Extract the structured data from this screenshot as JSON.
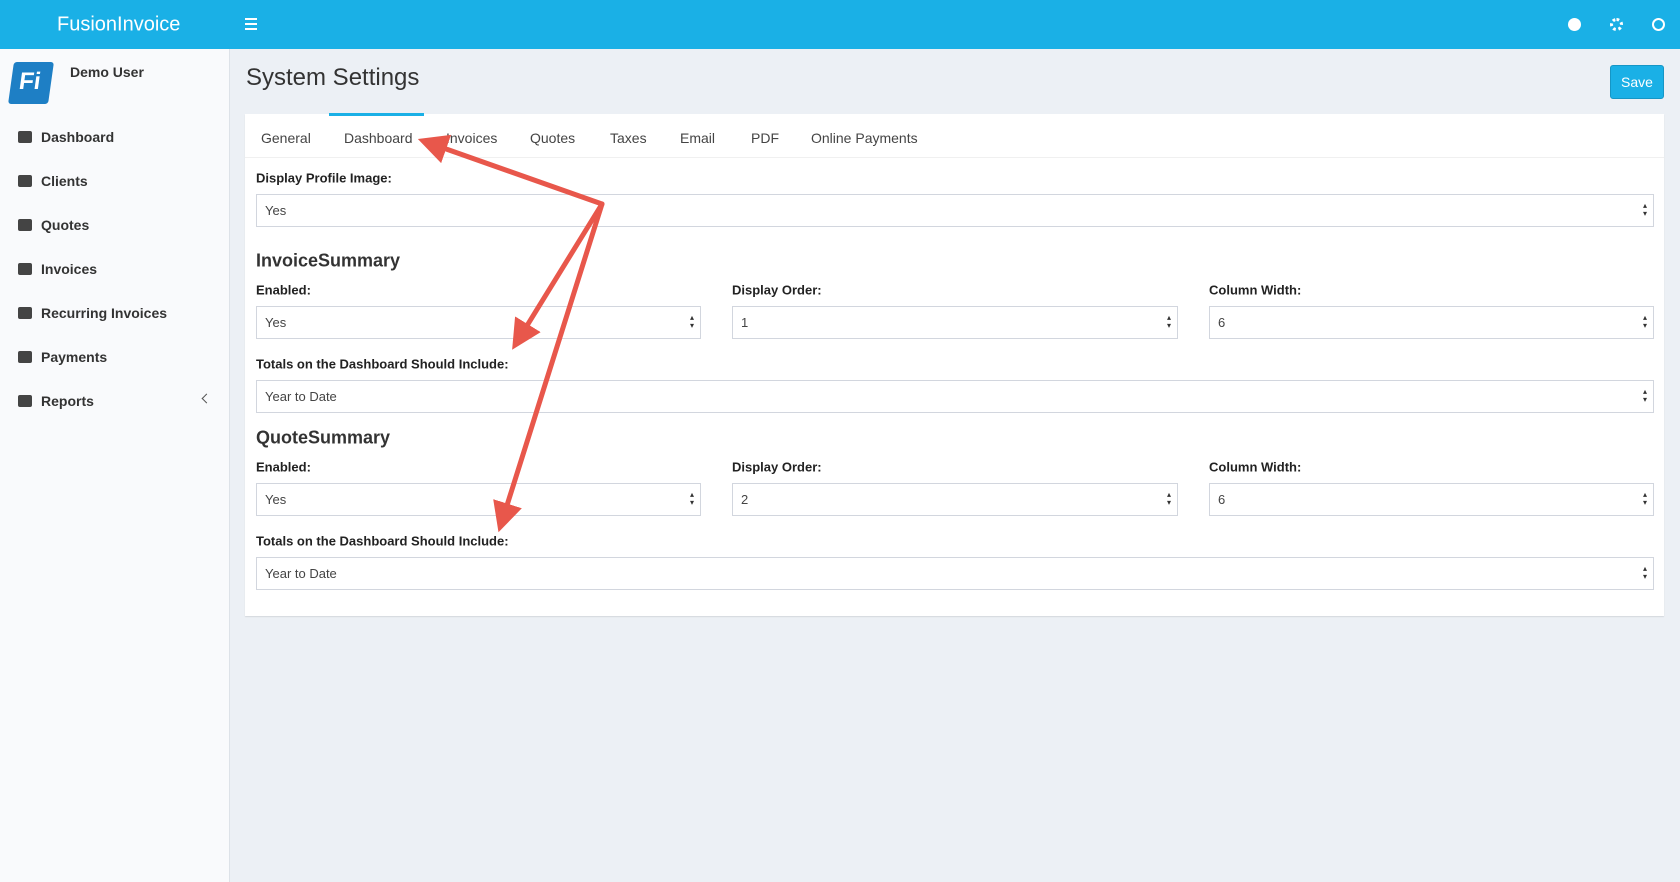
{
  "header": {
    "brand": "FusionInvoice"
  },
  "sidebar": {
    "user": "Demo User",
    "items": [
      "Dashboard",
      "Clients",
      "Quotes",
      "Invoices",
      "Recurring Invoices",
      "Payments",
      "Reports"
    ]
  },
  "page": {
    "title": "System Settings",
    "save": "Save"
  },
  "tabs": [
    "General",
    "Dashboard",
    "Invoices",
    "Quotes",
    "Taxes",
    "Email",
    "PDF",
    "Online Payments"
  ],
  "form": {
    "profile": {
      "label": "Display Profile Image:",
      "value": "Yes"
    },
    "sections": [
      {
        "title": "InvoiceSummary",
        "fields": [
          {
            "label": "Enabled:",
            "value": "Yes"
          },
          {
            "label": "Display Order:",
            "value": "1"
          },
          {
            "label": "Column Width:",
            "value": "6"
          }
        ],
        "totals": {
          "label": "Totals on the Dashboard Should Include:",
          "value": "Year to Date"
        }
      },
      {
        "title": "QuoteSummary",
        "fields": [
          {
            "label": "Enabled:",
            "value": "Yes"
          },
          {
            "label": "Display Order:",
            "value": "2"
          },
          {
            "label": "Column Width:",
            "value": "6"
          }
        ],
        "totals": {
          "label": "Totals on the Dashboard Should Include:",
          "value": "Year to Date"
        }
      }
    ]
  }
}
